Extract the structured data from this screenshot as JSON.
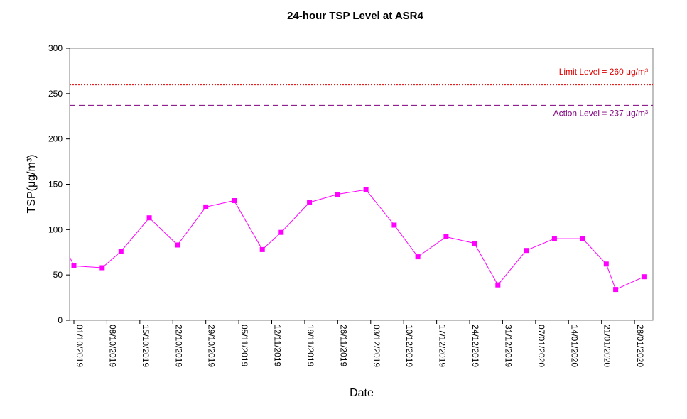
{
  "chart_data": {
    "type": "line",
    "title": "24-hour TSP Level at ASR4",
    "xlabel": "Date",
    "ylabel": "TSP(μg/m³)",
    "ylim": [
      0,
      300
    ],
    "yticks": [
      0,
      50,
      100,
      150,
      200,
      250,
      300
    ],
    "yticks_labels": [
      "0",
      "50",
      "100",
      "150",
      "200",
      "250",
      "300"
    ],
    "xlim": [
      "2019-10-01",
      "2020-01-31"
    ],
    "xticks": [
      "2019-10-01",
      "2019-10-08",
      "2019-10-15",
      "2019-10-22",
      "2019-10-29",
      "2019-11-05",
      "2019-11-12",
      "2019-11-19",
      "2019-11-26",
      "2019-12-03",
      "2019-12-10",
      "2019-12-17",
      "2019-12-24",
      "2019-12-31",
      "2020-01-07",
      "2020-01-14",
      "2020-01-21",
      "2020-01-28"
    ],
    "xtick_labels": [
      "01/10/2019",
      "08/10/2019",
      "15/10/2019",
      "22/10/2019",
      "29/10/2019",
      "05/11/2019",
      "12/11/2019",
      "19/11/2019",
      "26/11/2019",
      "03/12/2019",
      "10/12/2019",
      "17/12/2019",
      "24/12/2019",
      "31/12/2019",
      "07/01/2020",
      "14/01/2020",
      "21/01/2020",
      "28/01/2020"
    ],
    "grid": false,
    "series": [
      {
        "color": "#ff00ff",
        "marker": "square",
        "x": [
          "2019-10-01",
          "2019-10-07",
          "2019-10-11",
          "2019-10-17",
          "2019-10-23",
          "2019-10-29",
          "2019-11-04",
          "2019-11-10",
          "2019-11-14",
          "2019-11-20",
          "2019-11-26",
          "2019-12-02",
          "2019-12-08",
          "2019-12-13",
          "2019-12-19",
          "2019-12-25",
          "2019-12-30",
          "2020-01-05",
          "2020-01-11",
          "2020-01-17",
          "2020-01-22",
          "2020-01-24",
          "2020-01-30"
        ],
        "y": [
          60,
          58,
          76,
          113,
          83,
          125,
          132,
          78,
          97,
          130,
          139,
          144,
          105,
          70,
          92,
          85,
          39,
          77,
          90,
          90,
          62,
          34,
          48
        ]
      }
    ],
    "reference_lines": [
      {
        "name": "Limit Level  = 260 μg/m³",
        "value": 260,
        "color": "#e00000",
        "style": "dotted"
      },
      {
        "name": "Action Level  = 237 μg/m³",
        "value": 237,
        "color": "#800080",
        "style": "dashed"
      }
    ]
  }
}
